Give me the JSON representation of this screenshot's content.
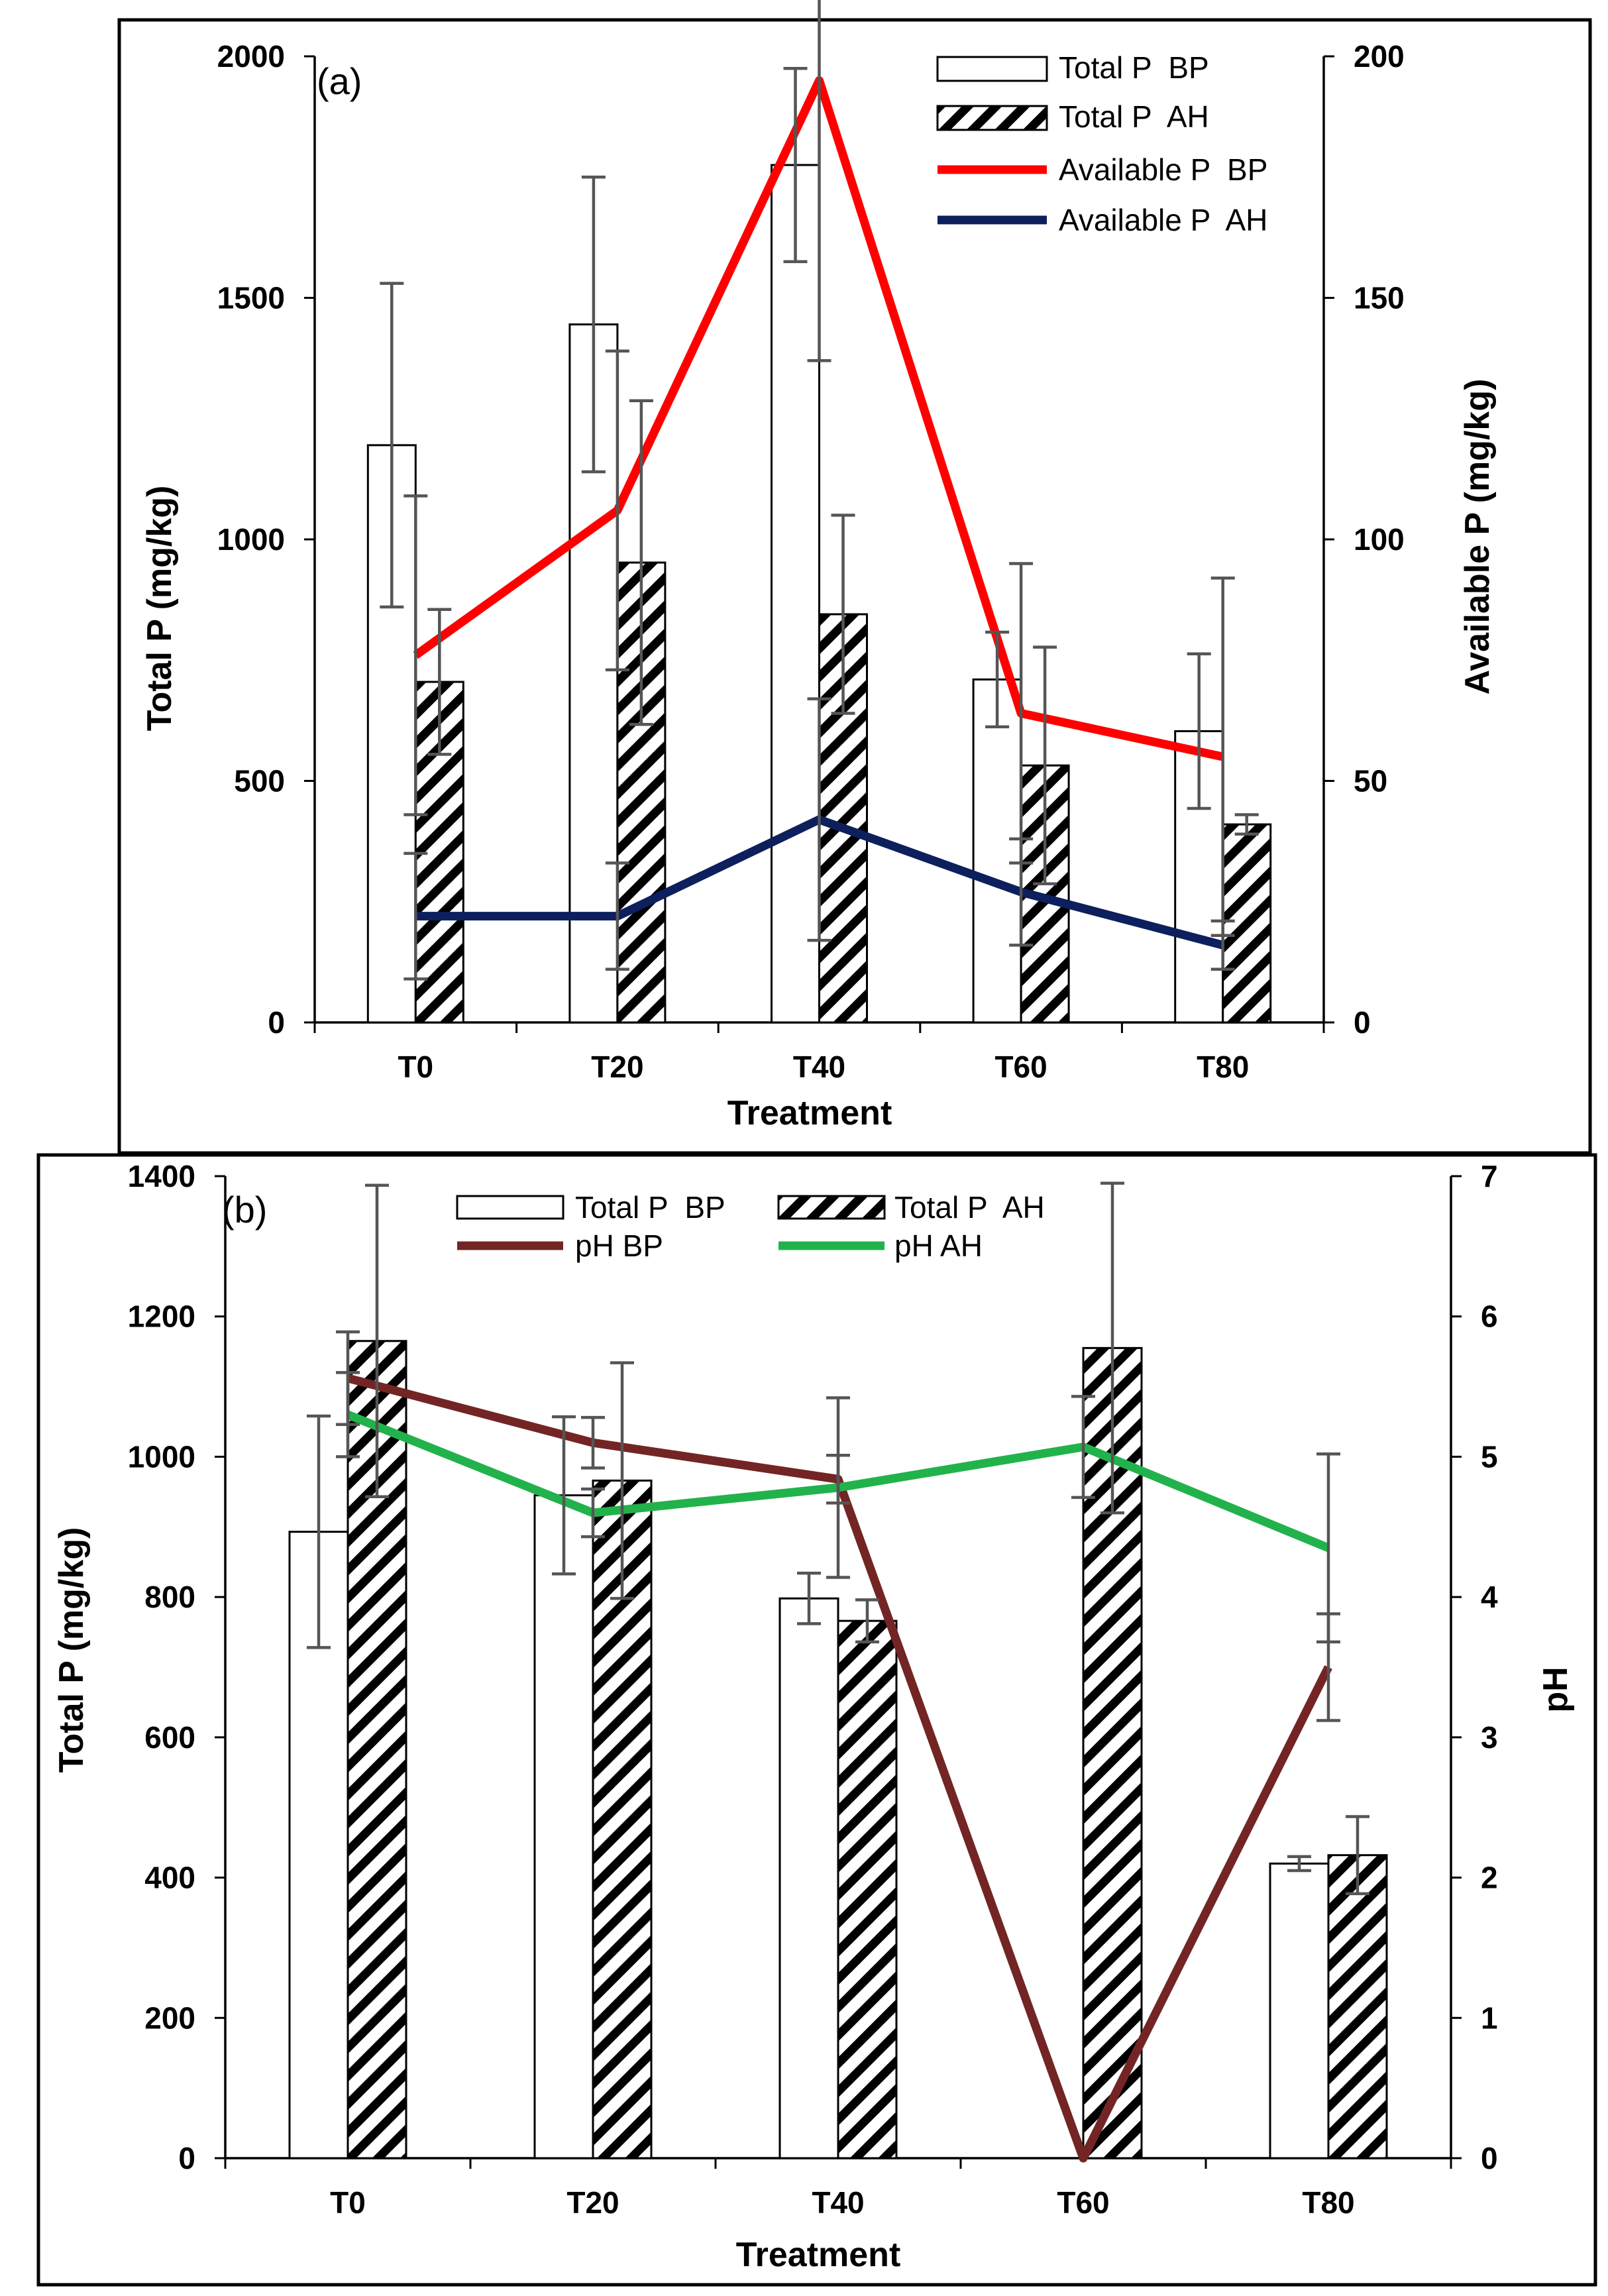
{
  "chart_data": [
    {
      "panel_label": "(a)",
      "type": "bar",
      "categories": [
        "T0",
        "T20",
        "T40",
        "T60",
        "T80"
      ],
      "xlabel": "Treatment",
      "ylabel": "Total P (mg/kg)",
      "y2label": "Available P (mg/kg)",
      "ylim": [
        0,
        2000
      ],
      "yticks": [
        "0",
        "500",
        "1000",
        "1500",
        "2000"
      ],
      "y2lim": [
        0,
        200
      ],
      "y2ticks": [
        "0",
        "50",
        "100",
        "150",
        "200"
      ],
      "legend_position": "top-right",
      "series": [
        {
          "name": "Total P  BP",
          "type": "bar",
          "pattern": "open",
          "axis": "left",
          "values": [
            1195,
            1445,
            1775,
            710,
            603
          ],
          "errors": [
            335,
            305,
            200,
            98,
            160
          ]
        },
        {
          "name": "Total P  AH",
          "type": "bar",
          "pattern": "hatched",
          "axis": "left",
          "values": [
            705,
            952,
            845,
            532,
            410
          ],
          "errors": [
            150,
            335,
            205,
            245,
            20
          ]
        },
        {
          "name": "Available P  BP",
          "type": "line",
          "color": "#ff0000",
          "axis": "right",
          "values": [
            76,
            106,
            195,
            64,
            55
          ],
          "errors": [
            33,
            33,
            58,
            31,
            37
          ]
        },
        {
          "name": "Available P  AH",
          "type": "line",
          "color": "#0d1f5c",
          "axis": "right",
          "values": [
            22,
            22,
            42,
            27,
            16
          ],
          "errors": [
            13,
            11,
            25,
            11,
            5
          ]
        }
      ]
    },
    {
      "panel_label": "(b)",
      "type": "bar",
      "categories": [
        "T0",
        "T20",
        "T40",
        "T60",
        "T80"
      ],
      "xlabel": "Treatment",
      "ylabel": "Total P (mg/kg)",
      "y2label": "pH",
      "ylim": [
        0,
        1400
      ],
      "yticks": [
        "0",
        "200",
        "400",
        "600",
        "800",
        "1000",
        "1200",
        "1400"
      ],
      "y2lim": [
        0,
        7
      ],
      "y2ticks": [
        "0",
        "1",
        "2",
        "3",
        "4",
        "5",
        "6",
        "7"
      ],
      "legend_position": "top",
      "series": [
        {
          "name": "Total P  BP",
          "type": "bar",
          "pattern": "open",
          "axis": "left",
          "values": [
            893,
            945,
            798,
            0,
            420
          ],
          "errors": [
            165,
            112,
            36,
            0,
            10
          ]
        },
        {
          "name": "Total P  AH",
          "type": "bar",
          "pattern": "hatched",
          "axis": "left",
          "values": [
            1165,
            966,
            766,
            1155,
            432
          ],
          "errors": [
            222,
            168,
            30,
            235,
            55
          ]
        },
        {
          "name": "pH BP",
          "type": "line",
          "color": "#722524",
          "axis": "right",
          "values": [
            5.56,
            5.1,
            4.84,
            0,
            3.5
          ],
          "errors": [
            0.33,
            0.18,
            0.17,
            0,
            0.38
          ]
        },
        {
          "name": "pH AH",
          "type": "line",
          "color": "#22b24c",
          "axis": "right",
          "values": [
            5.3,
            4.6,
            4.78,
            5.07,
            4.35
          ],
          "errors": [
            0.3,
            0.17,
            0.64,
            0.36,
            0.67
          ]
        }
      ]
    }
  ]
}
